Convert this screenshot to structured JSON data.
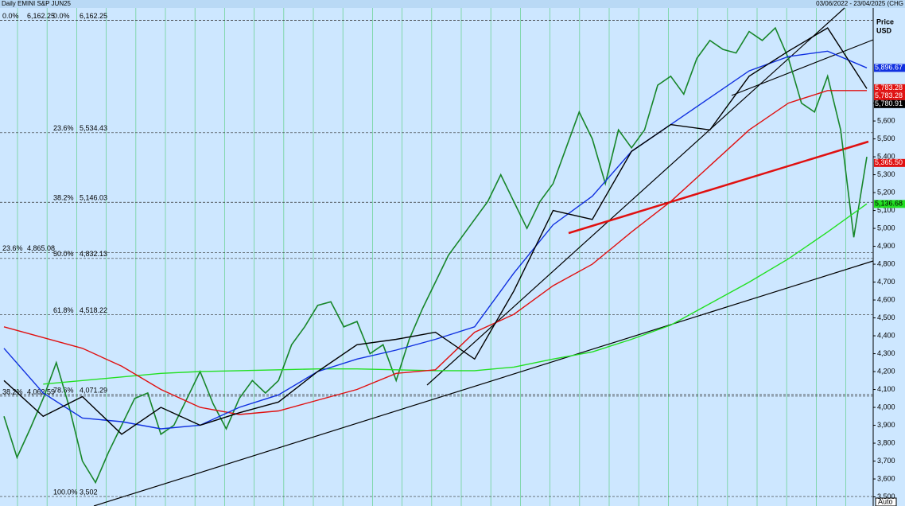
{
  "chart_data": {
    "type": "line",
    "title": "Daily EMINI S&P JUN25",
    "subtitle": "03/06/2022 - 23/04/2025 (CHG",
    "y_label_1": "Price",
    "y_label_2": "USD",
    "scale_mode": "Auto",
    "ylim": [
      3449,
      6276
    ],
    "yticks": [
      {
        "value": 3500,
        "label": "3,500"
      },
      {
        "value": 3600,
        "label": "3,600"
      },
      {
        "value": 3700,
        "label": "3,700"
      },
      {
        "value": 3800,
        "label": "3,800"
      },
      {
        "value": 3900,
        "label": "3,900"
      },
      {
        "value": 4000,
        "label": "4,000"
      },
      {
        "value": 4100,
        "label": "4,100"
      },
      {
        "value": 4200,
        "label": "4,200"
      },
      {
        "value": 4300,
        "label": "4,300"
      },
      {
        "value": 4400,
        "label": "4,400"
      },
      {
        "value": 4500,
        "label": "4,500"
      },
      {
        "value": 4600,
        "label": "4,600"
      },
      {
        "value": 4700,
        "label": "4,700"
      },
      {
        "value": 4800,
        "label": "4,800"
      },
      {
        "value": 4900,
        "label": "4,900"
      },
      {
        "value": 5000,
        "label": "5,000"
      },
      {
        "value": 5100,
        "label": "5,100"
      },
      {
        "value": 5200,
        "label": "5,200"
      },
      {
        "value": 5300,
        "label": "5,300"
      },
      {
        "value": 5400,
        "label": "5,400"
      },
      {
        "value": 5500,
        "label": "5,500"
      },
      {
        "value": 5600,
        "label": "5,600"
      },
      {
        "value": 5700,
        "label": "5,700"
      }
    ],
    "series": [
      {
        "color": "#17862a",
        "values": [
          3950,
          3720,
          3880,
          4050,
          4250,
          4000,
          3700,
          3580,
          3750,
          3900,
          4050,
          4080,
          3850,
          3900,
          4050,
          4200,
          4020,
          3880,
          4050,
          4150,
          4080,
          4150,
          4350,
          4450,
          4570,
          4590,
          4450,
          4480,
          4300,
          4350,
          4150,
          4380,
          4550,
          4700,
          4850,
          4950,
          5050,
          5150,
          5300,
          5150,
          5000,
          5150,
          5250,
          5450,
          5650,
          5500,
          5250,
          5550,
          5450,
          5550,
          5800,
          5850,
          5750,
          5950,
          6050,
          6000,
          5980,
          6100,
          6050,
          6120,
          5950,
          5700,
          5650,
          5850,
          5550,
          4950,
          5400
        ]
      },
      {
        "color": "#22e022",
        "values": [
          null,
          4130,
          4150,
          4170,
          4190,
          4200,
          4205,
          4210,
          4215,
          4215,
          4210,
          4205,
          4205,
          4225,
          4270,
          4310,
          4380,
          4460,
          4580,
          4700,
          4830,
          4980,
          5137
        ]
      },
      {
        "color": "#e01010",
        "values": [
          4450,
          4390,
          4330,
          4230,
          4100,
          4000,
          3960,
          3980,
          4040,
          4100,
          4190,
          4210,
          4420,
          4520,
          4680,
          4800,
          4980,
          5150,
          5350,
          5550,
          5700,
          5770,
          5770
        ]
      },
      {
        "color": "#1030e0",
        "values": [
          4330,
          4080,
          3940,
          3920,
          3880,
          3900,
          4000,
          4070,
          4200,
          4270,
          4320,
          4380,
          4450,
          4750,
          5020,
          5180,
          5430,
          5580,
          5730,
          5880,
          5960,
          5990,
          5897
        ]
      },
      {
        "color": "#000000",
        "values": [
          4150,
          3950,
          4060,
          3850,
          4000,
          3900,
          3970,
          4030,
          4200,
          4350,
          4380,
          4420,
          4270,
          4650,
          5100,
          5050,
          5430,
          5580,
          5550,
          5850,
          5990,
          6120,
          5781
        ]
      }
    ],
    "price_labels": [
      {
        "value": 5896.67,
        "label": "5,896.67",
        "color": "#1030e0"
      },
      {
        "value": 5783.28,
        "label": "5,783.28",
        "color": "#e01010"
      },
      {
        "value": 5783.28,
        "label": "5,783.28",
        "color": "#e01010"
      },
      {
        "value": 5780.91,
        "label": "5,780.91",
        "color": "#000000"
      },
      {
        "value": 5365.5,
        "label": "5,365.50",
        "color": "#e01010"
      },
      {
        "value": 5136.68,
        "label": "5,136.68",
        "color": "#22e022"
      }
    ],
    "fib_main": [
      {
        "pct": "0.0%",
        "value": 6162.25,
        "label": "6,162.25"
      },
      {
        "pct": "23.6%",
        "value": 5534.43,
        "label": "5,534.43"
      },
      {
        "pct": "38.2%",
        "value": 5146.03,
        "label": "5,146.03"
      },
      {
        "pct": "50.0%",
        "value": 4832.13,
        "label": "4,832.13"
      },
      {
        "pct": "61.8%",
        "value": 4518.22,
        "label": "4,518.22"
      },
      {
        "pct": "78.6%",
        "value": 4071.29,
        "label": "4,071.29"
      },
      {
        "pct": "100.0%",
        "value": 3502,
        "label": "3,502"
      }
    ],
    "fib_left": [
      {
        "pct": "0.0%",
        "value": 6162.25,
        "label": "6,162.25"
      },
      {
        "pct": "23.6%",
        "value": 4865.08,
        "label": "4,865.08"
      },
      {
        "pct": "38.2%",
        "value": 4062.59,
        "label": "4,062.59"
      }
    ]
  }
}
